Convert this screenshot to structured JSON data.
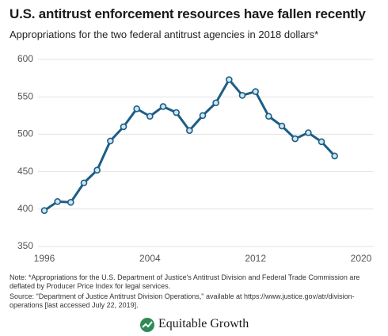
{
  "chart_data": {
    "type": "line",
    "title": "U.S. antitrust enforcement resources have fallen recently",
    "subtitle": "Appropriations for the two federal antitrust agencies in 2018 dollars*",
    "x": [
      1996,
      1997,
      1998,
      1999,
      2000,
      2001,
      2002,
      2003,
      2004,
      2005,
      2006,
      2007,
      2008,
      2009,
      2010,
      2011,
      2012,
      2013,
      2014,
      2015,
      2016,
      2017,
      2018
    ],
    "series": [
      {
        "name": "Appropriations",
        "color": "#1d5d86",
        "values": [
          398,
          410,
          409,
          435,
          452,
          491,
          510,
          534,
          524,
          537,
          529,
          505,
          525,
          542,
          573,
          552,
          557,
          524,
          511,
          494,
          502,
          490,
          471
        ]
      }
    ],
    "xlim": [
      1996,
      2020
    ],
    "xticks": [
      1996,
      2004,
      2012,
      2020
    ],
    "ylim": [
      350,
      600
    ],
    "yticks": [
      350,
      400,
      450,
      500,
      550,
      600
    ],
    "grid": true,
    "notes": [
      "Note: *Appropriations for the U.S. Department of Justice's Antitrust Division and Federal Trade Commission are deflated by Producer Price Index for legal services.",
      "Source: \"Department of Justice Antitrust Division Operations,\" available at https://www.justice.gov/atr/division-operations [last accessed July 22, 2019]."
    ],
    "brand": "Equitable Growth"
  }
}
